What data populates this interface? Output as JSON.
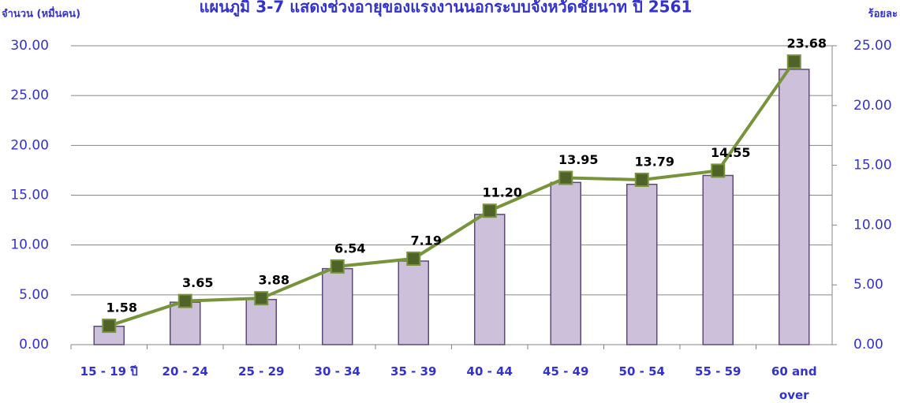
{
  "chart_data": {
    "type": "bar-line",
    "title": "แผนภูมิ 3-7 แสดงช่วงอายุของแรงงานนอกระบบจังหวัดชัยนาท ปี 2561",
    "y_label": "จำนวน (หมื่นคน)",
    "y2_label": "ร้อยละ",
    "categories": [
      "15 - 19 ปี",
      "20 - 24",
      "25 - 29",
      "30 - 34",
      "35 - 39",
      "40 - 44",
      "45 - 49",
      "50 - 54",
      "55 - 59",
      "60 and over"
    ],
    "series": [
      {
        "name": "จำนวน",
        "type": "bar",
        "color": "#ccc0da",
        "values": [
          1.84,
          4.26,
          4.53,
          7.63,
          8.39,
          13.07,
          16.28,
          16.09,
          16.98,
          27.63
        ]
      },
      {
        "name": "ร้อยละ",
        "type": "line",
        "axis": "y2",
        "color": "#77933c",
        "marker_color": "#4f6228",
        "values": [
          1.58,
          3.65,
          3.88,
          6.54,
          7.19,
          11.2,
          13.95,
          13.79,
          14.55,
          23.68
        ],
        "value_labels": [
          "1.58",
          "3.65",
          "3.88",
          "6.54",
          "7.19",
          "11.20",
          "13.95",
          "13.79",
          "14.55",
          "23.68"
        ]
      }
    ],
    "ylim": [
      0,
      30
    ],
    "yticks": [
      {
        "value": 0,
        "label": "0.00"
      },
      {
        "value": 5,
        "label": "5.00"
      },
      {
        "value": 10,
        "label": "10.00"
      },
      {
        "value": 15,
        "label": "15.00"
      },
      {
        "value": 20,
        "label": "20.00"
      },
      {
        "value": 25,
        "label": "25.00"
      },
      {
        "value": 30,
        "label": "30.00"
      }
    ],
    "y2lim": [
      0,
      25
    ],
    "y2ticks": [
      {
        "value": 0,
        "label": "0.00"
      },
      {
        "value": 5,
        "label": "5.00"
      },
      {
        "value": 10,
        "label": "10.00"
      },
      {
        "value": 15,
        "label": "15.00"
      },
      {
        "value": 20,
        "label": "20.00"
      },
      {
        "value": 25,
        "label": "25.00"
      }
    ],
    "grid": true
  }
}
